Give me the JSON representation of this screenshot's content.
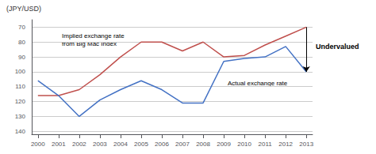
{
  "chart_data": {
    "type": "line",
    "x": [
      2000,
      2001,
      2002,
      2003,
      2004,
      2005,
      2006,
      2007,
      2008,
      2009,
      2010,
      2011,
      2012,
      2013
    ],
    "series": [
      {
        "color": "#C0504D",
        "values": [
          116,
          116,
          112,
          102,
          90,
          80,
          80,
          86,
          80,
          90,
          89,
          82,
          76,
          70
        ]
      },
      {
        "color": "#4472C4",
        "values": [
          106,
          116,
          130,
          119,
          112,
          106,
          112,
          121,
          121,
          93,
          91,
          90,
          83,
          100
        ]
      }
    ],
    "xlim": [
      1999.7,
      2013.3
    ],
    "xticks": [
      2000,
      2001,
      2002,
      2003,
      2004,
      2005,
      2006,
      2007,
      2008,
      2009,
      2010,
      2011,
      2012,
      2013
    ],
    "ylim": [
      142,
      65
    ],
    "yticks": [
      70,
      80,
      90,
      100,
      110,
      120,
      130,
      140
    ],
    "ylabel": "(JPY/USD)",
    "annotations": [
      "Implied exchange rate\nfrom Big Mac Index",
      "Actual exchange rate",
      "Undervalued"
    ],
    "grid": true
  }
}
